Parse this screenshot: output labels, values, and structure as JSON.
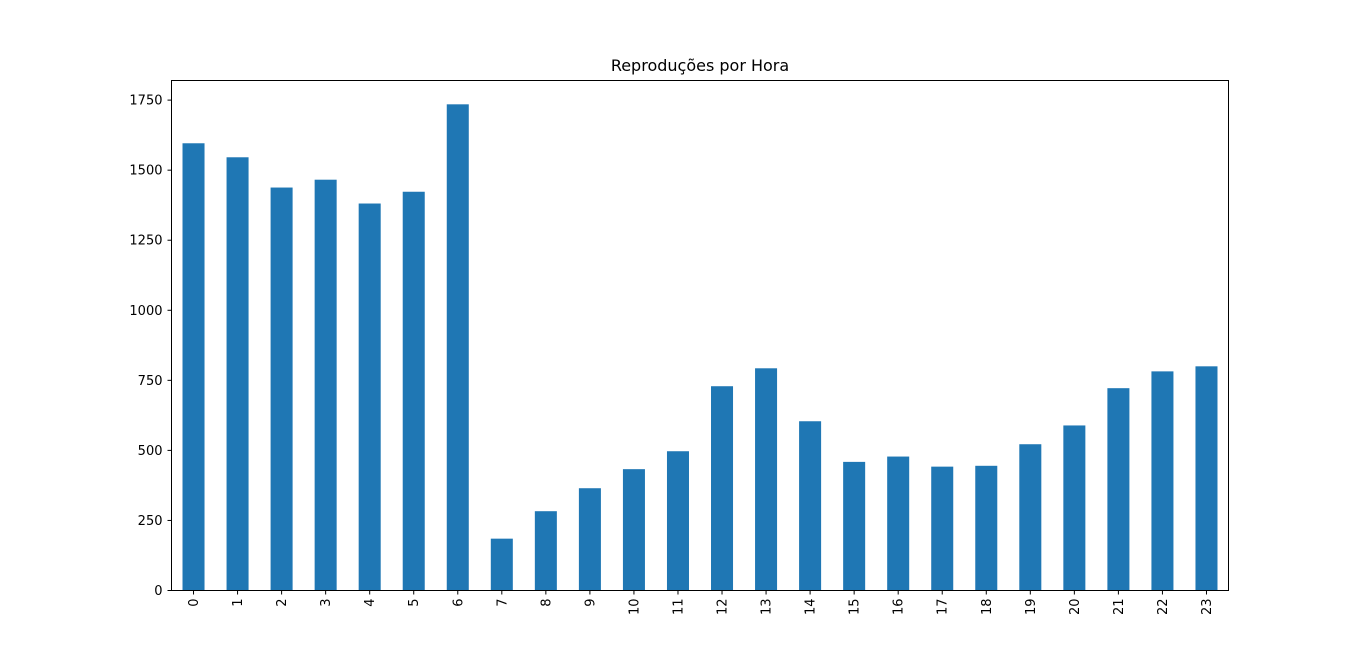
{
  "chart_data": {
    "type": "bar",
    "title": "Reproduções por Hora",
    "xlabel": "",
    "ylabel": "",
    "categories": [
      "0",
      "1",
      "2",
      "3",
      "4",
      "5",
      "6",
      "7",
      "8",
      "9",
      "10",
      "11",
      "12",
      "13",
      "14",
      "15",
      "16",
      "17",
      "18",
      "19",
      "20",
      "21",
      "22",
      "23"
    ],
    "values": [
      1596,
      1546,
      1438,
      1466,
      1381,
      1423,
      1735,
      185,
      283,
      365,
      433,
      497,
      729,
      793,
      604,
      459,
      478,
      442,
      445,
      522,
      589,
      722,
      782,
      800
    ],
    "ylim": [
      0,
      1820
    ],
    "yticks": [
      0,
      250,
      500,
      750,
      1000,
      1250,
      1500,
      1750
    ],
    "x_tick_rotation": "vertical",
    "grid": false,
    "legend": "none",
    "bar_color": "#1f77b4"
  }
}
